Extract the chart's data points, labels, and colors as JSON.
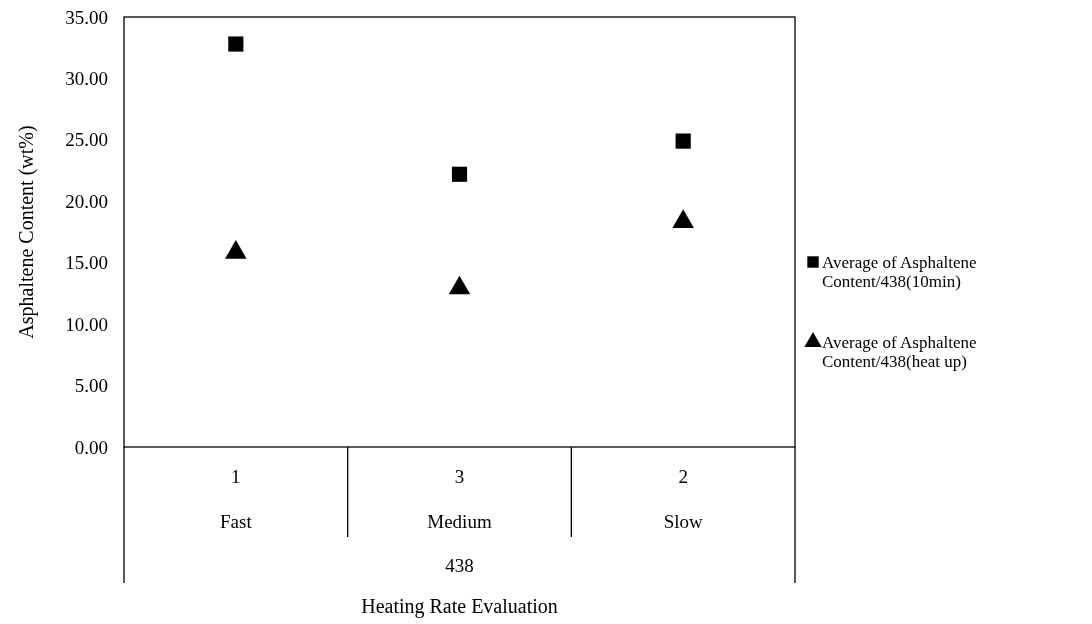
{
  "chart_data": {
    "type": "scatter",
    "xlabel": "Heating Rate Evaluation",
    "ylabel": "Asphaltene Content (wt%)",
    "categories": [
      "Fast",
      "Medium",
      "Slow"
    ],
    "series": [
      {
        "name": "Average of Asphaltene Content/438(10min)",
        "color": "#000000",
        "marker": "square",
        "values": [
          32.8,
          22.2,
          24.9
        ]
      },
      {
        "name": "Average of Asphaltene Content/438(heat up)",
        "color": "#000000",
        "marker": "triangle",
        "values": [
          16.0,
          13.1,
          18.5
        ]
      }
    ],
    "ylim": [
      0,
      35
    ],
    "yticks": [
      {
        "value": 0,
        "label": "0.00"
      },
      {
        "value": 5,
        "label": "5.00"
      },
      {
        "value": 10,
        "label": "10.00"
      },
      {
        "value": 15,
        "label": "15.00"
      },
      {
        "value": 20,
        "label": "20.00"
      },
      {
        "value": 25,
        "label": "25.00"
      },
      {
        "value": 30,
        "label": "30.00"
      },
      {
        "value": 35,
        "label": "35.00"
      }
    ],
    "annotations": [
      "1",
      "3",
      "2",
      "438"
    ],
    "grid": false,
    "legend": "right"
  }
}
